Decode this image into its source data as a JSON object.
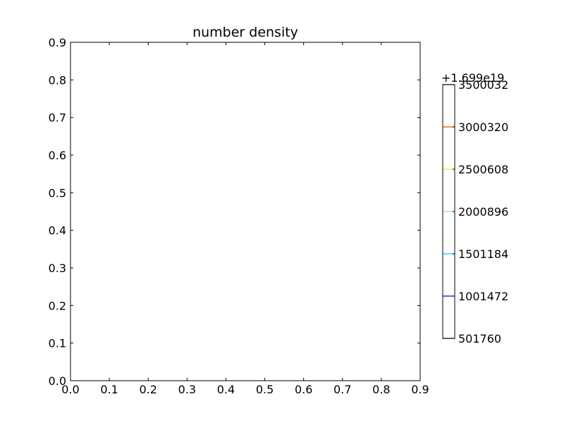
{
  "chart_data": {
    "type": "contour",
    "title": "number density",
    "xlabel": "",
    "ylabel": "",
    "xlim": [
      0.0,
      0.9
    ],
    "ylim": [
      0.0,
      0.9
    ],
    "x_ticks": [
      "0.0",
      "0.1",
      "0.2",
      "0.3",
      "0.4",
      "0.5",
      "0.6",
      "0.7",
      "0.8",
      "0.9"
    ],
    "y_ticks": [
      "0.0",
      "0.1",
      "0.2",
      "0.3",
      "0.4",
      "0.5",
      "0.6",
      "0.7",
      "0.8",
      "0.9"
    ],
    "grid": false,
    "data_points": [],
    "colorbar": {
      "offset_label": "+1.699e19",
      "range": [
        501760,
        3500032
      ],
      "levels": [
        {
          "value": 501760,
          "label": "501760",
          "color": "#000080"
        },
        {
          "value": 1001472,
          "label": "1001472",
          "color": "#0000ff"
        },
        {
          "value": 1501184,
          "label": "1501184",
          "color": "#00d4ff"
        },
        {
          "value": 2000896,
          "label": "2000896",
          "color": "#7dff7a"
        },
        {
          "value": 2500608,
          "label": "2500608",
          "color": "#ffe600"
        },
        {
          "value": 3000320,
          "label": "3000320",
          "color": "#ff4a00"
        },
        {
          "value": 3500032,
          "label": "3500032",
          "color": "#800000"
        }
      ]
    }
  }
}
